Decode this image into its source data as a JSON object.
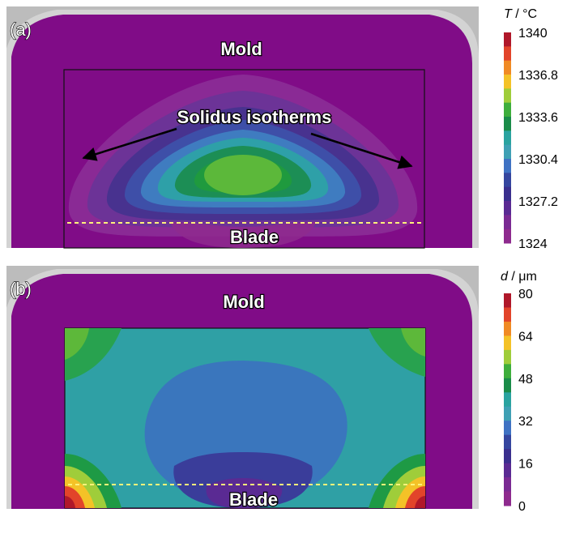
{
  "panels": [
    {
      "letter": "(a)",
      "mold_label": "Mold",
      "blade_label": "Blade",
      "annotation": "Solidus isotherms",
      "colorbar": {
        "title_var": "T",
        "title_unit": " / °C",
        "ticks": [
          "1340",
          "1336.8",
          "1333.6",
          "1330.4",
          "1327.2",
          "1324"
        ],
        "colors": [
          "#b0182a",
          "#e2442a",
          "#f08a24",
          "#f4c227",
          "#9fcd3a",
          "#3eae3c",
          "#1a8c49",
          "#2aa3a0",
          "#3fa0b4",
          "#3f72c3",
          "#35469f",
          "#3a2f8e",
          "#5a2a93",
          "#7a2a93",
          "#8e2a8e"
        ]
      }
    },
    {
      "letter": "(b)",
      "mold_label": "Mold",
      "blade_label": "Blade",
      "colorbar": {
        "title_var": "d",
        "title_unit": " / μm",
        "ticks": [
          "80",
          "64",
          "48",
          "32",
          "16",
          "0"
        ],
        "colors": [
          "#b0182a",
          "#e2442a",
          "#f08a24",
          "#f4c227",
          "#9fcd3a",
          "#3eae3c",
          "#1a8c49",
          "#2aa3a0",
          "#3fa0b4",
          "#3f72c3",
          "#35469f",
          "#3a2f8e",
          "#5a2a93",
          "#7a2a93",
          "#8e2a8e"
        ]
      }
    }
  ],
  "colors": {
    "mold": "#800c87",
    "panel_bg": "#bcbcbc",
    "blade_line": "#fff27a"
  }
}
